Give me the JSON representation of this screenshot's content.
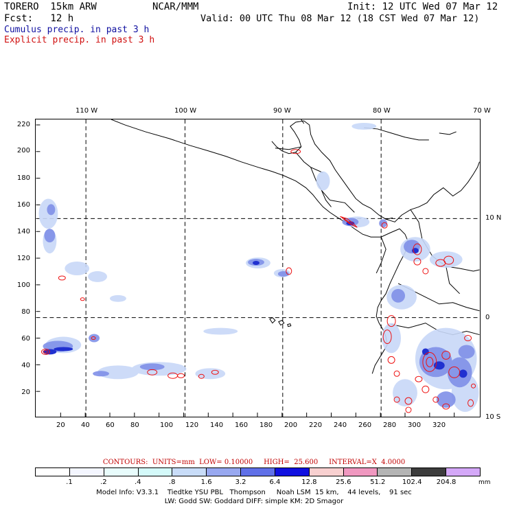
{
  "header": {
    "model": "TORERO  15km ARW",
    "org": "NCAR/MMM",
    "init": "Init: 12 UTC Wed 07 Mar 12",
    "fcst": "Fcst:   12 h",
    "valid": "Valid: 00 UTC Thu 08 Mar 12 (18 CST Wed 07 Mar 12)",
    "legend_cumulus": "Cumulus precip. in past 3 h",
    "legend_explicit": "Explicit precip. in past 3 h"
  },
  "colors": {
    "cumulus": "#1010a0",
    "explicit": "#d01010",
    "contour": "#ee1010",
    "precip_light": "#c8d8f8",
    "precip_mid": "#8090e8",
    "precip_heavy": "#2030d0"
  },
  "axes": {
    "top_lon_labels": [
      "110 W",
      "100 W",
      "90 W",
      "80 W",
      "70 W"
    ],
    "right_lat_labels": [
      "10 N",
      "0",
      "10 S"
    ],
    "left_y_labels": [
      "220",
      "200",
      "180",
      "160",
      "140",
      "120",
      "100",
      "80",
      "60",
      "40",
      "20"
    ],
    "bottom_x_labels": [
      "20",
      "40",
      "60",
      "80",
      "100",
      "120",
      "140",
      "160",
      "180",
      "200",
      "220",
      "240",
      "260",
      "280",
      "300",
      "320"
    ]
  },
  "contour_info": {
    "label": "CONTOURS:  UNITS=mm  LOW= 0.10000     HIGH=  25.600     INTERVAL=X  4.0000"
  },
  "colorbar": {
    "colors": [
      "#ffffff",
      "#f4f6ff",
      "#e8fcfc",
      "#d4fafa",
      "#c8dcf8",
      "#98a8f0",
      "#6070e8",
      "#1010e0",
      "#f8d0d0",
      "#f098c0",
      "#b4b4b4",
      "#3c3c3c",
      "#d4a8f8"
    ],
    "labels": [
      ".1",
      ".2",
      ".4",
      ".8",
      "1.6",
      "3.2",
      "6.4",
      "12.8",
      "25.6",
      "51.2",
      "102.4",
      "204.8"
    ],
    "unit": "mm"
  },
  "footer": {
    "line1": "Model Info: V3.3.1    Tiedtke YSU PBL   Thompson     Noah LSM  15 km,    44 levels,    91 sec",
    "line2": "LW: Godd SW: Goddard DIFF: simple KM: 2D Smagor"
  }
}
